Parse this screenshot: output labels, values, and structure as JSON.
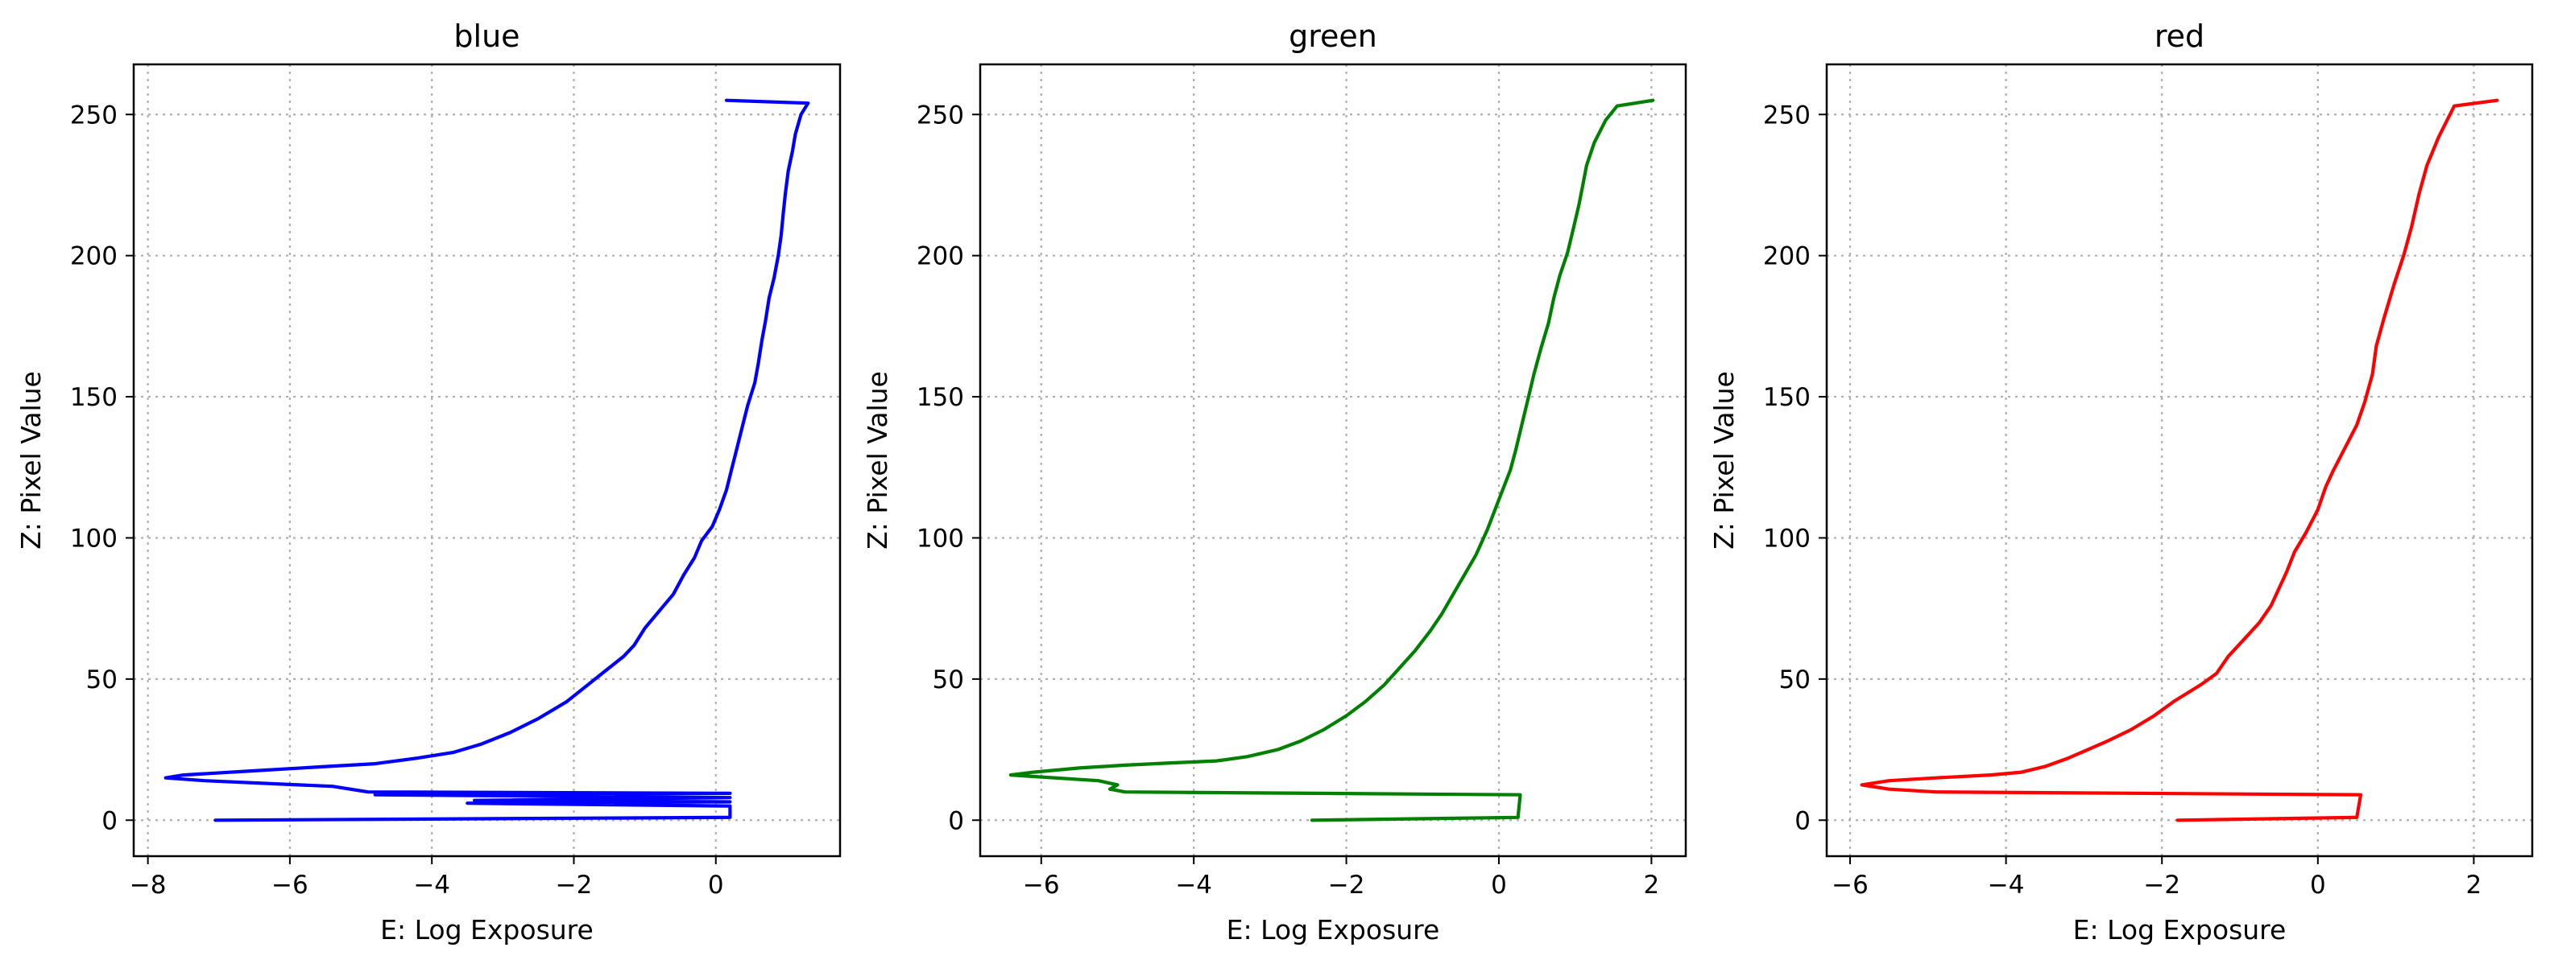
{
  "chart_data": [
    {
      "type": "line",
      "title": "blue",
      "xlabel": "E: Log Exposure",
      "ylabel": "Z: Pixel Value",
      "xlim": [
        -8.2,
        1.75
      ],
      "ylim": [
        -12.75,
        267.75
      ],
      "xticks": [
        -8,
        -6,
        -4,
        -2,
        0
      ],
      "yticks": [
        0,
        50,
        100,
        150,
        200,
        250
      ],
      "grid": true,
      "series": [
        {
          "color": "#0000ff",
          "points": [
            [
              -7.05,
              0
            ],
            [
              0.2,
              1
            ],
            [
              0.2,
              5
            ],
            [
              -3.5,
              6
            ],
            [
              0.2,
              6.5
            ],
            [
              -3.4,
              7
            ],
            [
              0.2,
              8
            ],
            [
              -4.8,
              9
            ],
            [
              0.2,
              9.5
            ],
            [
              -4.9,
              10
            ],
            [
              -5.4,
              12
            ],
            [
              -7.2,
              14
            ],
            [
              -7.75,
              15
            ],
            [
              -7.5,
              16
            ],
            [
              -6.5,
              17.5
            ],
            [
              -5.5,
              19
            ],
            [
              -4.8,
              20
            ],
            [
              -4.2,
              22
            ],
            [
              -3.7,
              24
            ],
            [
              -3.3,
              27
            ],
            [
              -2.9,
              31
            ],
            [
              -2.5,
              36
            ],
            [
              -2.1,
              42
            ],
            [
              -1.8,
              48
            ],
            [
              -1.55,
              53
            ],
            [
              -1.3,
              58
            ],
            [
              -1.15,
              62
            ],
            [
              -1.0,
              68
            ],
            [
              -0.8,
              74
            ],
            [
              -0.6,
              80
            ],
            [
              -0.45,
              87
            ],
            [
              -0.3,
              93
            ],
            [
              -0.2,
              99
            ],
            [
              -0.05,
              104
            ],
            [
              0.05,
              110
            ],
            [
              0.15,
              117
            ],
            [
              0.22,
              124
            ],
            [
              0.3,
              132
            ],
            [
              0.38,
              140
            ],
            [
              0.45,
              147
            ],
            [
              0.55,
              155
            ],
            [
              0.6,
              162
            ],
            [
              0.65,
              170
            ],
            [
              0.7,
              177
            ],
            [
              0.75,
              185
            ],
            [
              0.82,
              192
            ],
            [
              0.88,
              200
            ],
            [
              0.92,
              207
            ],
            [
              0.95,
              215
            ],
            [
              0.98,
              222
            ],
            [
              1.02,
              230
            ],
            [
              1.08,
              237
            ],
            [
              1.12,
              243
            ],
            [
              1.2,
              250
            ],
            [
              1.3,
              254
            ],
            [
              0.15,
              255
            ]
          ]
        }
      ]
    },
    {
      "type": "line",
      "title": "green",
      "xlabel": "E: Log Exposure",
      "ylabel": "Z: Pixel Value",
      "xlim": [
        -6.8,
        2.45
      ],
      "ylim": [
        -12.75,
        267.75
      ],
      "xticks": [
        -6,
        -4,
        -2,
        0,
        2
      ],
      "yticks": [
        0,
        50,
        100,
        150,
        200,
        250
      ],
      "grid": true,
      "series": [
        {
          "color": "#008000",
          "points": [
            [
              -2.45,
              0
            ],
            [
              0.25,
              1
            ],
            [
              0.28,
              9
            ],
            [
              -4.9,
              10
            ],
            [
              -5.1,
              11
            ],
            [
              -5.0,
              12.5
            ],
            [
              -5.25,
              14
            ],
            [
              -6.4,
              16
            ],
            [
              -6.1,
              17
            ],
            [
              -5.5,
              18.5
            ],
            [
              -4.9,
              19.5
            ],
            [
              -4.3,
              20.3
            ],
            [
              -3.7,
              21
            ],
            [
              -3.3,
              22.5
            ],
            [
              -2.9,
              25
            ],
            [
              -2.6,
              28
            ],
            [
              -2.3,
              32
            ],
            [
              -2.0,
              37
            ],
            [
              -1.75,
              42
            ],
            [
              -1.5,
              48
            ],
            [
              -1.3,
              54
            ],
            [
              -1.1,
              60
            ],
            [
              -0.9,
              67
            ],
            [
              -0.75,
              73
            ],
            [
              -0.6,
              80
            ],
            [
              -0.45,
              87
            ],
            [
              -0.3,
              94
            ],
            [
              -0.15,
              103
            ],
            [
              -0.05,
              110
            ],
            [
              0.05,
              117
            ],
            [
              0.15,
              124
            ],
            [
              0.22,
              131
            ],
            [
              0.3,
              140
            ],
            [
              0.38,
              149
            ],
            [
              0.46,
              158
            ],
            [
              0.55,
              167
            ],
            [
              0.65,
              176
            ],
            [
              0.72,
              185
            ],
            [
              0.8,
              193
            ],
            [
              0.9,
              201
            ],
            [
              0.98,
              210
            ],
            [
              1.05,
              218
            ],
            [
              1.1,
              225
            ],
            [
              1.15,
              232
            ],
            [
              1.25,
              240
            ],
            [
              1.4,
              248
            ],
            [
              1.55,
              253
            ],
            [
              2.02,
              255
            ]
          ]
        }
      ]
    },
    {
      "type": "line",
      "title": "red",
      "xlabel": "E: Log Exposure",
      "ylabel": "Z: Pixel Value",
      "xlim": [
        -6.3,
        2.75
      ],
      "ylim": [
        -12.75,
        267.75
      ],
      "xticks": [
        -6,
        -4,
        -2,
        0,
        2
      ],
      "yticks": [
        0,
        50,
        100,
        150,
        200,
        250
      ],
      "grid": true,
      "series": [
        {
          "color": "#ff0000",
          "points": [
            [
              -1.8,
              0
            ],
            [
              0.5,
              1
            ],
            [
              0.55,
              9
            ],
            [
              -4.9,
              10
            ],
            [
              -5.5,
              11
            ],
            [
              -5.85,
              12.5
            ],
            [
              -5.5,
              14
            ],
            [
              -4.9,
              15
            ],
            [
              -4.2,
              16
            ],
            [
              -3.8,
              17
            ],
            [
              -3.5,
              19
            ],
            [
              -3.2,
              22
            ],
            [
              -2.95,
              25
            ],
            [
              -2.7,
              28
            ],
            [
              -2.4,
              32
            ],
            [
              -2.1,
              37
            ],
            [
              -1.85,
              42
            ],
            [
              -1.5,
              48
            ],
            [
              -1.3,
              52
            ],
            [
              -1.15,
              58
            ],
            [
              -0.95,
              64
            ],
            [
              -0.75,
              70
            ],
            [
              -0.6,
              76
            ],
            [
              -0.5,
              82
            ],
            [
              -0.4,
              88
            ],
            [
              -0.3,
              95
            ],
            [
              -0.15,
              102
            ],
            [
              0.0,
              110
            ],
            [
              0.1,
              118
            ],
            [
              0.2,
              124
            ],
            [
              0.35,
              132
            ],
            [
              0.5,
              140
            ],
            [
              0.6,
              148
            ],
            [
              0.7,
              158
            ],
            [
              0.75,
              168
            ],
            [
              0.85,
              178
            ],
            [
              0.98,
              190
            ],
            [
              1.1,
              200
            ],
            [
              1.2,
              210
            ],
            [
              1.3,
              222
            ],
            [
              1.4,
              232
            ],
            [
              1.55,
              242
            ],
            [
              1.75,
              253
            ],
            [
              2.3,
              255
            ]
          ]
        }
      ]
    }
  ]
}
